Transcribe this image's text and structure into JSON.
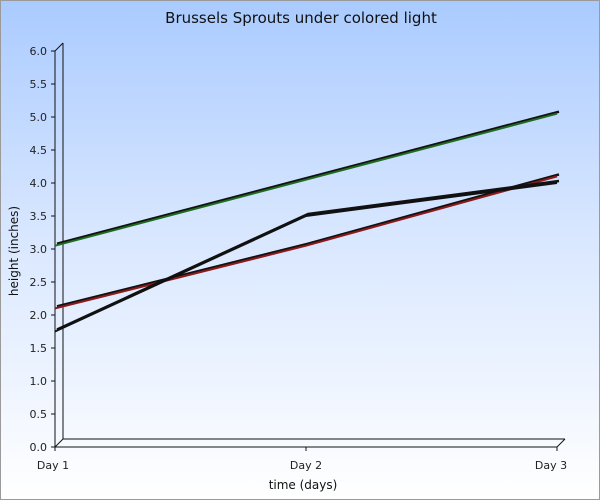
{
  "chart_data": {
    "type": "line",
    "title": "Brussels Sprouts under colored light",
    "xlabel": "time (days)",
    "ylabel": "height (inches)",
    "categories": [
      "Day 1",
      "Day 2",
      "Day 3"
    ],
    "ylim": [
      0,
      6
    ],
    "ytick_labels": [
      "0.0",
      "0.5",
      "1.0",
      "1.5",
      "2.0",
      "2.5",
      "3.0",
      "3.5",
      "4.0",
      "4.5",
      "5.0",
      "5.5",
      "6.0"
    ],
    "grid": false,
    "legend": "none",
    "series": [
      {
        "values": [
          3.05,
          4.05,
          5.05
        ],
        "color": "#1f6b1f"
      },
      {
        "values": [
          2.1,
          3.05,
          4.1
        ],
        "color": "#8b1a1a"
      },
      {
        "values": [
          1.75,
          3.5,
          4.0
        ],
        "color": "#111111"
      }
    ]
  }
}
